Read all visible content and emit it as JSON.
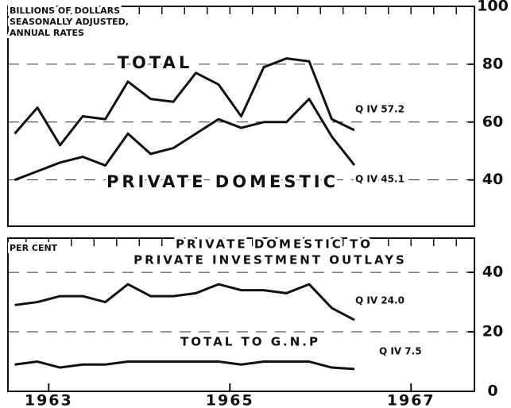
{
  "chart_data": [
    {
      "type": "line",
      "y_label": [
        "BILLIONS OF DOLLARS",
        "SEASONALLY ADJUSTED,",
        "ANNUAL RATES"
      ],
      "x": [
        1962.625,
        1962.875,
        1963.125,
        1963.375,
        1963.625,
        1963.875,
        1964.125,
        1964.375,
        1964.625,
        1964.875,
        1965.125,
        1965.375,
        1965.625,
        1965.875,
        1966.125,
        1966.375
      ],
      "xlim": [
        1962.55,
        1967.7
      ],
      "ylim": [
        24,
        100
      ],
      "yticks": [
        40,
        60,
        80,
        100
      ],
      "grid": true,
      "series": [
        {
          "name": [
            "TOTAL"
          ],
          "color": "#111111",
          "values": [
            56,
            65,
            52,
            62,
            61,
            74,
            68,
            67,
            77,
            73,
            62,
            79,
            82,
            81,
            61,
            57.2
          ]
        },
        {
          "name": [
            "PRIVATE DOMESTIC"
          ],
          "color": "#111111",
          "values": [
            40,
            43,
            46,
            48,
            45,
            56,
            49,
            51,
            56,
            61,
            58,
            60,
            60,
            68,
            55,
            45.1
          ]
        }
      ],
      "annotations": [
        "Q IV 57.2",
        "Q IV 45.1"
      ]
    },
    {
      "type": "line",
      "y_label": [
        "PER CENT"
      ],
      "x": [
        1962.625,
        1962.875,
        1963.125,
        1963.375,
        1963.625,
        1963.875,
        1964.125,
        1964.375,
        1964.625,
        1964.875,
        1965.125,
        1965.375,
        1965.625,
        1965.875,
        1966.125,
        1966.375
      ],
      "xlim": [
        1962.55,
        1967.7
      ],
      "xticks": [
        1963,
        1965,
        1967
      ],
      "ylim": [
        0,
        51.5
      ],
      "yticks": [
        0,
        20,
        40
      ],
      "grid": true,
      "series": [
        {
          "name": [
            "PRIVATE DOMESTIC TO",
            "PRIVATE INVESTMENT OUTLAYS"
          ],
          "color": "#111111",
          "values": [
            29,
            30,
            32,
            32,
            30,
            36,
            32,
            32,
            33,
            36,
            34,
            34,
            33,
            36,
            28,
            24.0
          ]
        },
        {
          "name": [
            "TOTAL TO G.N.P"
          ],
          "color": "#111111",
          "values": [
            9,
            10,
            8,
            9,
            9,
            10,
            10,
            10,
            10,
            10,
            9,
            10,
            10,
            10,
            8,
            7.5
          ]
        }
      ],
      "annotations": [
        "Q IV 24.0",
        "Q IV 7.5"
      ]
    }
  ]
}
